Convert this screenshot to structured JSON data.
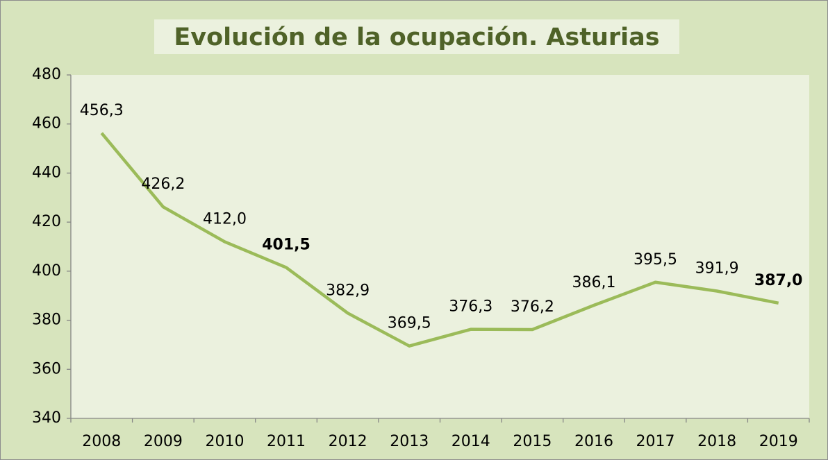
{
  "chart_data": {
    "type": "line",
    "title": "Evolución de la ocupación. Asturias",
    "categories": [
      "2008",
      "2009",
      "2010",
      "2011",
      "2012",
      "2013",
      "2014",
      "2015",
      "2016",
      "2017",
      "2018",
      "2019"
    ],
    "values": [
      456.3,
      426.2,
      412.0,
      401.5,
      382.9,
      369.5,
      376.3,
      376.2,
      386.1,
      395.5,
      391.9,
      387.0
    ],
    "value_labels": [
      "456,3",
      "426,2",
      "412,0",
      "401,5",
      "382,9",
      "369,5",
      "376,3",
      "376,2",
      "386,1",
      "395,5",
      "391,9",
      "387,0"
    ],
    "label_bold": [
      false,
      false,
      false,
      true,
      false,
      false,
      false,
      false,
      false,
      false,
      false,
      true
    ],
    "color": "#9bbb59",
    "ylim": [
      340,
      480
    ],
    "yticks": [
      340,
      360,
      380,
      400,
      420,
      440,
      460,
      480
    ],
    "grid": false
  }
}
